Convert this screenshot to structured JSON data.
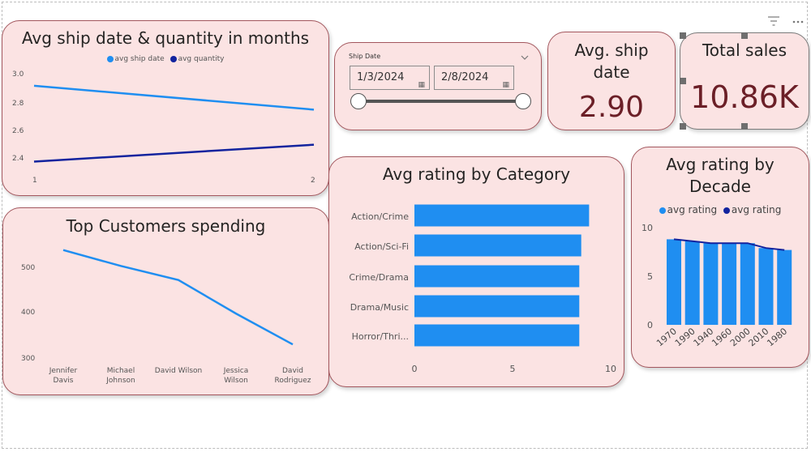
{
  "toolbar": {
    "filter_icon": "filter-icon",
    "more_icon": "more-options-icon"
  },
  "colors": {
    "light_blue": "#1f8ef1",
    "dark_blue": "#12239e",
    "card_bg": "#fbe3e3",
    "card_border": "#a3575e",
    "kpi_text": "#6b1f27"
  },
  "ship_qty": {
    "title": "Avg ship date & quantity in months",
    "legend": [
      "avg ship date",
      "avg quantity"
    ],
    "y_ticks": [
      "3.0",
      "2.8",
      "2.6",
      "2.4"
    ],
    "x_ticks": [
      "1",
      "2"
    ]
  },
  "slicer": {
    "label": "Ship Date",
    "start": "1/3/2024",
    "end": "2/8/2024",
    "slider_value": [
      0,
      1
    ]
  },
  "kpi_ship": {
    "title": "Avg. ship date",
    "value": "2.90"
  },
  "kpi_sales": {
    "title": "Total sales",
    "value": "10.86K"
  },
  "customers": {
    "title": "Top Customers spending",
    "y_ticks": [
      "500",
      "400",
      "300"
    ],
    "names": [
      [
        "Jennifer",
        "Davis"
      ],
      [
        "Michael",
        "Johnson"
      ],
      [
        "David Wilson"
      ],
      [
        "Jessica",
        "Wilson"
      ],
      [
        "David",
        "Rodriguez"
      ]
    ]
  },
  "category": {
    "title": "Avg rating by Category",
    "categories": [
      "Action/Crime",
      "Action/Sci-Fi",
      "Crime/Drama",
      "Drama/Music",
      "Horror/Thri..."
    ],
    "x_ticks": [
      "0",
      "5",
      "10"
    ]
  },
  "decade": {
    "title": [
      "Avg rating by",
      "Decade"
    ],
    "legend": [
      "avg rating",
      "avg rating"
    ],
    "y_ticks": [
      "10",
      "5",
      "0"
    ],
    "x_ticks": [
      "1970",
      "1990",
      "1940",
      "1960",
      "2000",
      "2010",
      "1980"
    ]
  },
  "chart_data": [
    {
      "type": "line",
      "title": "Avg ship date & quantity in months",
      "x": [
        1,
        2
      ],
      "series": [
        {
          "name": "avg ship date",
          "values": [
            2.92,
            2.75
          ],
          "color": "#1f8ef1"
        },
        {
          "name": "avg quantity",
          "values": [
            2.38,
            2.5
          ],
          "color": "#12239e"
        }
      ],
      "ylim": [
        2.3,
        3.05
      ],
      "grid": false,
      "legend": "top-center"
    },
    {
      "type": "line",
      "title": "Top Customers spending",
      "categories": [
        "Jennifer Davis",
        "Michael Johnson",
        "David Wilson",
        "Jessica Wilson",
        "David Rodriguez"
      ],
      "series": [
        {
          "values": [
            538,
            503,
            472,
            398,
            330
          ],
          "color": "#1f8ef1"
        }
      ],
      "ylim": [
        290,
        560
      ],
      "grid": false
    },
    {
      "type": "bar",
      "orientation": "horizontal",
      "title": "Avg rating by Category",
      "categories": [
        "Action/Crime",
        "Action/Sci-Fi",
        "Crime/Drama",
        "Drama/Music",
        "Horror/Thri..."
      ],
      "values": [
        8.9,
        8.5,
        8.4,
        8.4,
        8.4
      ],
      "xlim": [
        0,
        10
      ],
      "color": "#1f8ef1",
      "grid": false
    },
    {
      "type": "bar",
      "title": "Avg rating by Decade",
      "categories": [
        "1970",
        "1990",
        "1940",
        "1960",
        "2000",
        "2010",
        "1980"
      ],
      "series": [
        {
          "name": "avg rating",
          "kind": "bar",
          "values": [
            8.8,
            8.6,
            8.4,
            8.4,
            8.4,
            7.9,
            7.7
          ],
          "color": "#1f8ef1"
        },
        {
          "name": "avg rating",
          "kind": "line",
          "values": [
            8.8,
            8.6,
            8.4,
            8.4,
            8.4,
            7.9,
            7.7
          ],
          "color": "#12239e"
        }
      ],
      "ylim": [
        0,
        10
      ],
      "legend": "top-center",
      "grid": false
    }
  ]
}
